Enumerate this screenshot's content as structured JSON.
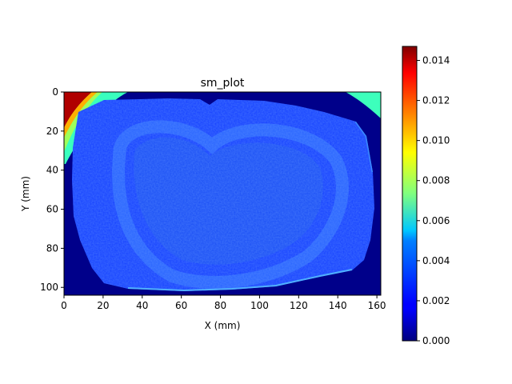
{
  "chart_data": {
    "type": "heatmap",
    "title": "sm_plot",
    "xlabel": "X (mm)",
    "ylabel": "Y (mm)",
    "xlim": [
      0,
      162
    ],
    "ylim": [
      104,
      0
    ],
    "x_ticks": [
      0,
      20,
      40,
      60,
      80,
      100,
      120,
      140,
      160
    ],
    "y_ticks": [
      0,
      20,
      40,
      60,
      80,
      100
    ],
    "colormap": "jet",
    "colorbar": {
      "range": [
        0,
        0.0147
      ],
      "ticks": [
        "0.000",
        "0.002",
        "0.004",
        "0.006",
        "0.008",
        "0.010",
        "0.012",
        "0.014"
      ],
      "tick_values": [
        0,
        0.002,
        0.004,
        0.006,
        0.008,
        0.01,
        0.012,
        0.014
      ]
    },
    "grid": false,
    "regions": [
      {
        "name": "background",
        "value": 0.0
      },
      {
        "name": "brain-tissue",
        "value": 0.0025
      },
      {
        "name": "cortex-ring",
        "value": 0.0032
      },
      {
        "name": "bright-corner-top-left",
        "value": 0.0145
      },
      {
        "name": "edge-band-top-left",
        "value": 0.0075
      },
      {
        "name": "edge-band-top-right",
        "value": 0.0058
      },
      {
        "name": "bottom-rim",
        "value": 0.0048
      }
    ]
  }
}
